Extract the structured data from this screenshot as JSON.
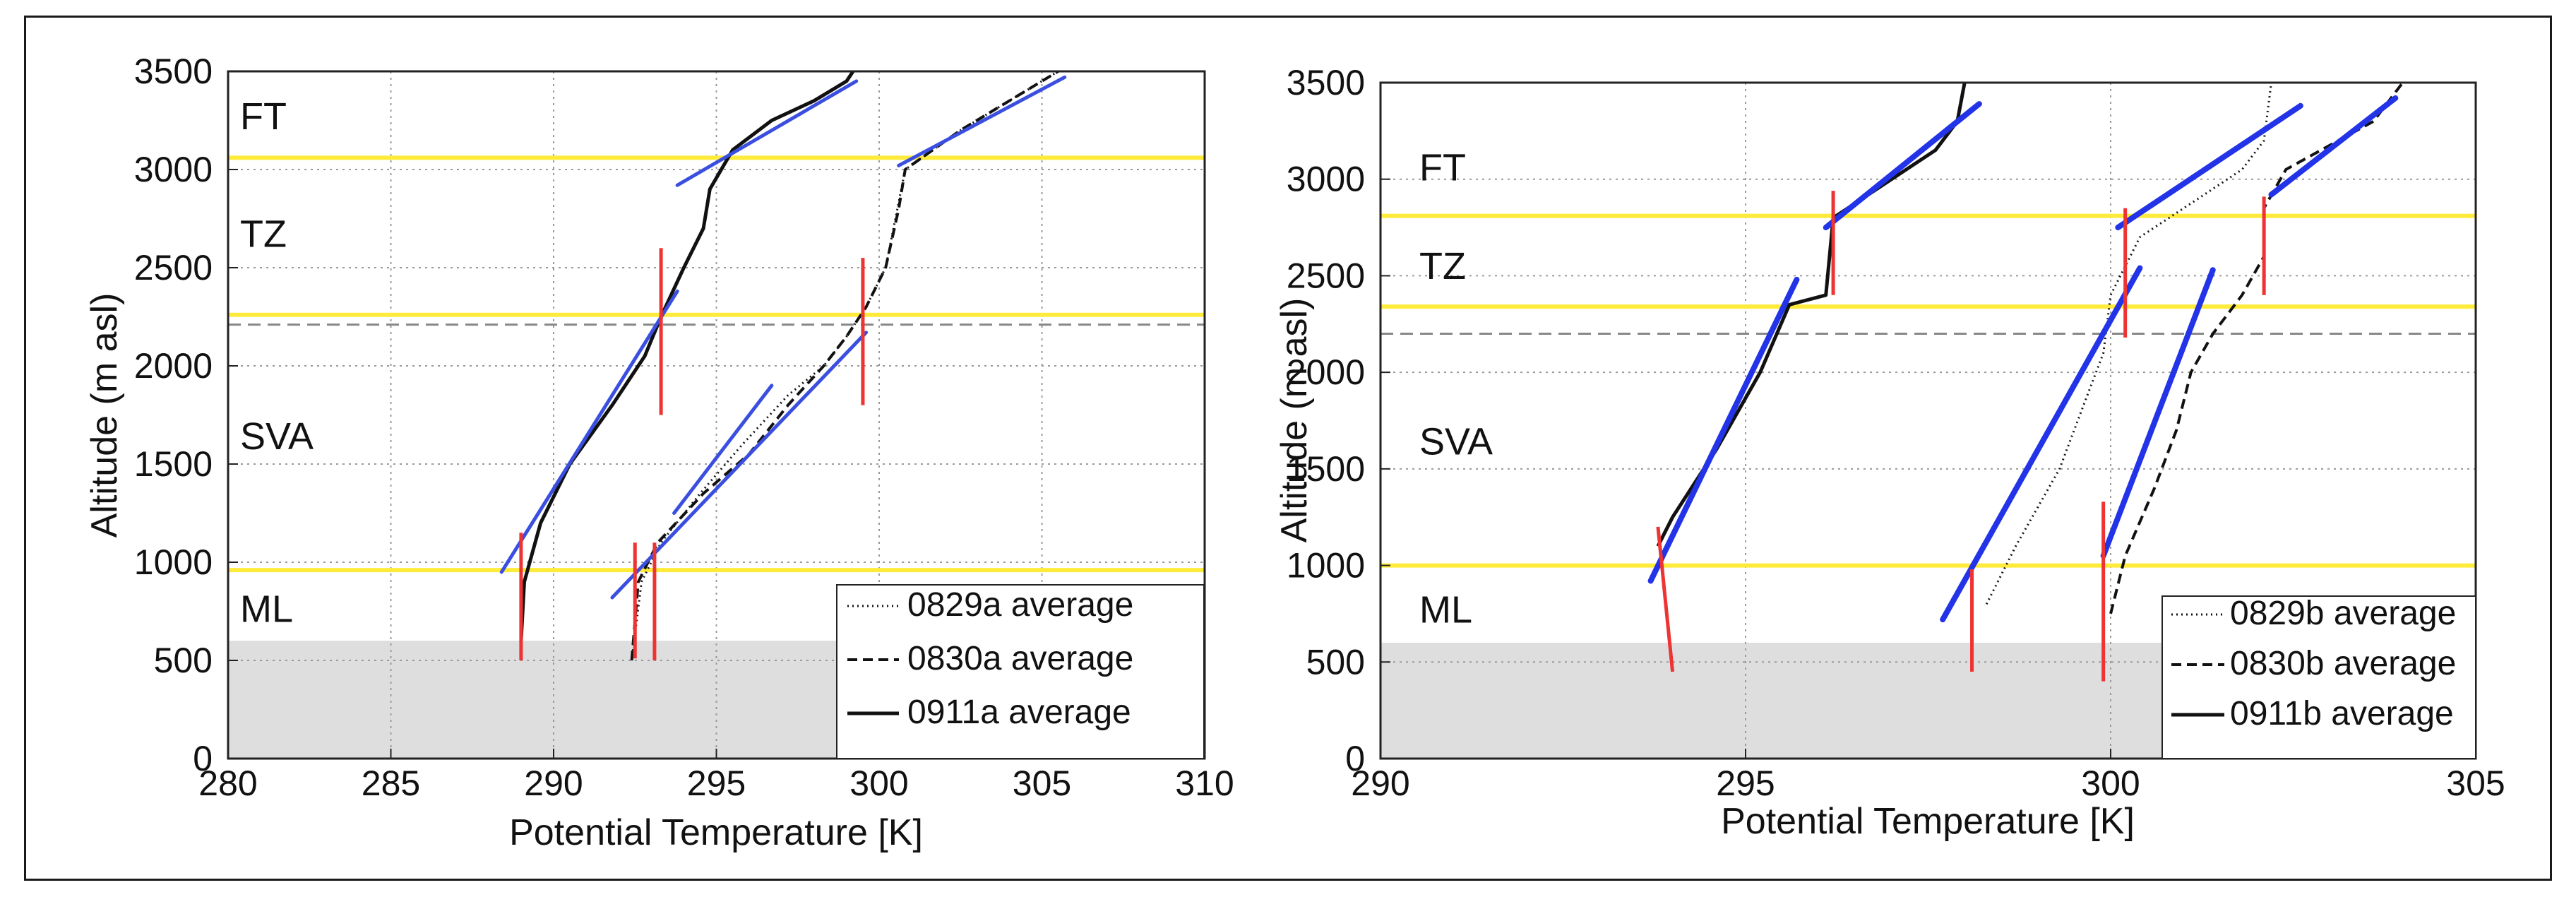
{
  "chart_data": [
    {
      "type": "line",
      "xlabel": "Potential Temperature [K]",
      "ylabel": "Altitude (m asl)",
      "xlim": [
        280,
        310
      ],
      "ylim": [
        0,
        3500
      ],
      "xticks": [
        "280",
        "285",
        "290",
        "295",
        "300",
        "305",
        "310"
      ],
      "yticks": [
        "0",
        "500",
        "1000",
        "1500",
        "2000",
        "2500",
        "3000",
        "3500"
      ],
      "grid": true,
      "legend_position": "bottom-right",
      "regions": [
        {
          "label": "FT",
          "y": 3270
        },
        {
          "label": "TZ",
          "y": 2670
        },
        {
          "label": "SVA",
          "y": 1640
        },
        {
          "label": "ML",
          "y": 760
        }
      ],
      "shaded_band": [
        0,
        600
      ],
      "yellow_lines": [
        960,
        2260,
        3060
      ],
      "dashed_line": 2210,
      "series": [
        {
          "name": "0829a average",
          "style": "dotted",
          "points": [
            [
              292.4,
              500
            ],
            [
              292.7,
              900
            ],
            [
              293.3,
              1100
            ],
            [
              294.5,
              1350
            ],
            [
              295.8,
              1600
            ],
            [
              297.2,
              1850
            ],
            [
              298.3,
              2000
            ],
            [
              299.0,
              2150
            ],
            [
              299.6,
              2300
            ],
            [
              300.2,
              2500
            ],
            [
              300.5,
              2750
            ],
            [
              300.8,
              3000
            ],
            [
              302.5,
              3200
            ],
            [
              305.5,
              3500
            ]
          ]
        },
        {
          "name": "0830a average",
          "style": "dashed",
          "points": [
            [
              292.4,
              500
            ],
            [
              292.6,
              900
            ],
            [
              293.2,
              1100
            ],
            [
              294.6,
              1350
            ],
            [
              296.0,
              1550
            ],
            [
              297.2,
              1800
            ],
            [
              298.3,
              2000
            ],
            [
              299.0,
              2150
            ],
            [
              299.6,
              2300
            ],
            [
              300.2,
              2500
            ],
            [
              300.6,
              2800
            ],
            [
              300.8,
              3000
            ],
            [
              302.5,
              3200
            ],
            [
              305.5,
              3500
            ]
          ]
        },
        {
          "name": "0911a average",
          "style": "solid",
          "points": [
            [
              289.0,
              600
            ],
            [
              289.1,
              900
            ],
            [
              289.6,
              1200
            ],
            [
              290.5,
              1500
            ],
            [
              291.8,
              1800
            ],
            [
              292.8,
              2050
            ],
            [
              293.3,
              2250
            ],
            [
              294.0,
              2500
            ],
            [
              294.6,
              2700
            ],
            [
              294.8,
              2900
            ],
            [
              295.5,
              3100
            ],
            [
              296.7,
              3250
            ],
            [
              298.0,
              3350
            ],
            [
              299.0,
              3450
            ],
            [
              299.2,
              3500
            ]
          ]
        }
      ],
      "fit_lines_blue": [
        [
          [
            288.4,
            950
          ],
          [
            293.8,
            2380
          ]
        ],
        [
          [
            293.8,
            2920
          ],
          [
            299.3,
            3450
          ]
        ],
        [
          [
            291.8,
            820
          ],
          [
            299.6,
            2170
          ]
        ],
        [
          [
            293.7,
            1250
          ],
          [
            296.7,
            1900
          ]
        ],
        [
          [
            300.6,
            3020
          ],
          [
            305.7,
            3470
          ]
        ]
      ],
      "red_markers": [
        [
          [
            289.0,
            500
          ],
          [
            289.0,
            1150
          ]
        ],
        [
          [
            292.5,
            510
          ],
          [
            292.5,
            1100
          ]
        ],
        [
          [
            293.1,
            500
          ],
          [
            293.1,
            1100
          ]
        ],
        [
          [
            293.3,
            1750
          ],
          [
            293.3,
            2600
          ]
        ],
        [
          [
            299.5,
            1800
          ],
          [
            299.5,
            2550
          ]
        ]
      ]
    },
    {
      "type": "line",
      "xlabel": "Potential Temperature [K]",
      "ylabel": "Altitude (m asl)",
      "xlim": [
        290,
        305
      ],
      "ylim": [
        0,
        3500
      ],
      "xticks": [
        "290",
        "295",
        "300",
        "305"
      ],
      "yticks": [
        "0",
        "500",
        "1000",
        "1500",
        "2000",
        "2500",
        "3000",
        "3500"
      ],
      "grid": true,
      "legend_position": "bottom-right",
      "regions": [
        {
          "label": "FT",
          "y": 3060
        },
        {
          "label": "TZ",
          "y": 2550
        },
        {
          "label": "SVA",
          "y": 1640
        },
        {
          "label": "ML",
          "y": 770
        }
      ],
      "shaded_band": [
        0,
        600
      ],
      "yellow_lines": [
        1000,
        2340,
        2810
      ],
      "dashed_line": 2200,
      "series": [
        {
          "name": "0829b average",
          "style": "dotted",
          "points": [
            [
              298.3,
              800
            ],
            [
              298.7,
              1100
            ],
            [
              299.3,
              1500
            ],
            [
              299.6,
              1800
            ],
            [
              299.9,
              2100
            ],
            [
              300.0,
              2400
            ],
            [
              300.4,
              2700
            ],
            [
              301.2,
              2900
            ],
            [
              301.8,
              3050
            ],
            [
              302.1,
              3200
            ],
            [
              302.2,
              3500
            ]
          ]
        },
        {
          "name": "0830b average",
          "style": "dashed",
          "points": [
            [
              300.0,
              750
            ],
            [
              300.2,
              1050
            ],
            [
              300.6,
              1400
            ],
            [
              300.9,
              1700
            ],
            [
              301.1,
              2000
            ],
            [
              301.4,
              2200
            ],
            [
              301.8,
              2400
            ],
            [
              302.1,
              2600
            ],
            [
              302.1,
              2850
            ],
            [
              302.4,
              3050
            ],
            [
              303.6,
              3300
            ],
            [
              304.0,
              3500
            ]
          ]
        },
        {
          "name": "0911b average",
          "style": "solid",
          "points": [
            [
              293.8,
              1100
            ],
            [
              294.0,
              1250
            ],
            [
              294.6,
              1600
            ],
            [
              295.2,
              2000
            ],
            [
              295.6,
              2350
            ],
            [
              296.1,
              2400
            ],
            [
              296.2,
              2800
            ],
            [
              296.8,
              2950
            ],
            [
              297.6,
              3150
            ],
            [
              297.9,
              3300
            ],
            [
              298.0,
              3500
            ]
          ]
        }
      ],
      "fit_lines_blue": [
        [
          [
            293.7,
            920
          ],
          [
            295.7,
            2480
          ]
        ],
        [
          [
            296.1,
            2750
          ],
          [
            298.2,
            3390
          ]
        ],
        [
          [
            297.7,
            720
          ],
          [
            300.4,
            2540
          ]
        ],
        [
          [
            300.1,
            2750
          ],
          [
            302.6,
            3380
          ]
        ],
        [
          [
            299.9,
            1050
          ],
          [
            301.4,
            2530
          ]
        ],
        [
          [
            302.2,
            2920
          ],
          [
            303.9,
            3420
          ]
        ]
      ],
      "red_markers": [
        [
          [
            293.8,
            1200
          ],
          [
            294.0,
            450
          ]
        ],
        [
          [
            296.2,
            2400
          ],
          [
            296.2,
            2940
          ]
        ],
        [
          [
            298.1,
            450
          ],
          [
            298.1,
            980
          ]
        ],
        [
          [
            299.9,
            400
          ],
          [
            299.9,
            1330
          ]
        ],
        [
          [
            300.2,
            2180
          ],
          [
            300.2,
            2850
          ]
        ],
        [
          [
            302.1,
            2400
          ],
          [
            302.1,
            2910
          ]
        ]
      ]
    }
  ]
}
